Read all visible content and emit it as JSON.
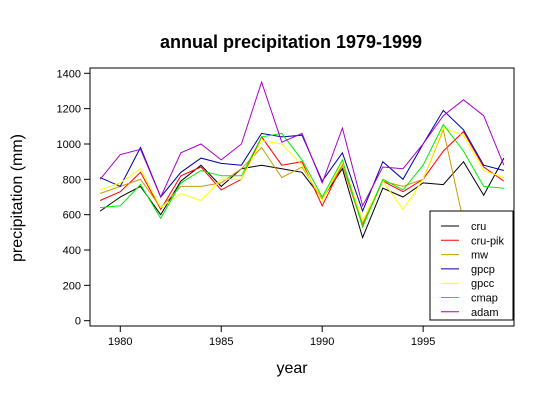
{
  "chart_data": {
    "type": "line",
    "title": "annual precipitation 1979-1999",
    "xlabel": "year",
    "ylabel": "precipitation (mm)",
    "xlim": [
      1978.5,
      1999.5
    ],
    "ylim": [
      -30,
      1430
    ],
    "xticks": [
      1980,
      1985,
      1990,
      1995
    ],
    "yticks": [
      0,
      200,
      400,
      600,
      800,
      1000,
      1200,
      1400
    ],
    "x": [
      1979,
      1980,
      1981,
      1982,
      1983,
      1984,
      1985,
      1986,
      1987,
      1988,
      1989,
      1990,
      1991,
      1992,
      1993,
      1994,
      1995,
      1996,
      1997,
      1998,
      1999
    ],
    "legend_position": "bottom-right",
    "series": [
      {
        "name": "cru",
        "color": "#000000",
        "values": [
          620,
          700,
          760,
          600,
          790,
          880,
          760,
          860,
          880,
          860,
          840,
          690,
          860,
          470,
          750,
          700,
          780,
          770,
          900,
          710,
          920
        ]
      },
      {
        "name": "cru-pik",
        "color": "#ff0000",
        "values": [
          680,
          730,
          840,
          630,
          820,
          870,
          740,
          800,
          1040,
          880,
          900,
          650,
          880,
          540,
          790,
          730,
          800,
          960,
          1070,
          870,
          790
        ]
      },
      {
        "name": "mw",
        "color": "#cc9900",
        "values": [
          720,
          760,
          800,
          640,
          760,
          760,
          780,
          860,
          980,
          810,
          870,
          690,
          880,
          550,
          790,
          760,
          800,
          1080,
          560,
          null,
          null
        ]
      },
      {
        "name": "gpcp",
        "color": "#0000aa",
        "values": [
          810,
          760,
          980,
          700,
          840,
          920,
          890,
          880,
          1060,
          1040,
          1050,
          790,
          950,
          620,
          900,
          800,
          1000,
          1190,
          1080,
          880,
          850
        ]
      },
      {
        "name": "gpcc",
        "color": "#ffff00",
        "values": [
          740,
          780,
          860,
          640,
          720,
          680,
          800,
          800,
          1020,
          1000,
          880,
          680,
          900,
          570,
          790,
          630,
          800,
          1090,
          1050,
          850,
          810
        ]
      },
      {
        "name": "cmap",
        "color": "#00ee00",
        "values": [
          640,
          650,
          770,
          580,
          780,
          850,
          820,
          820,
          1040,
          1060,
          910,
          700,
          910,
          530,
          800,
          740,
          880,
          1110,
          960,
          760,
          750
        ]
      },
      {
        "name": "adam",
        "color": "#aa00cc",
        "values": [
          800,
          940,
          970,
          700,
          950,
          1000,
          910,
          1000,
          1350,
          1010,
          1060,
          780,
          1090,
          650,
          870,
          860,
          1000,
          1160,
          1250,
          1160,
          880
        ]
      }
    ]
  }
}
